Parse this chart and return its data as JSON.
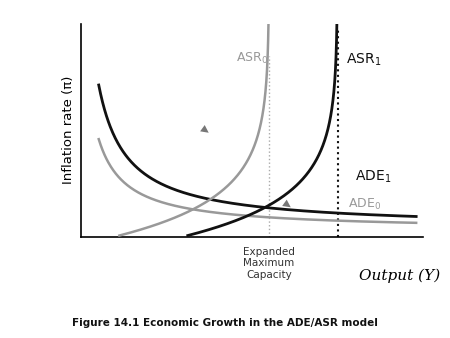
{
  "title_caption": "Figure 14.1 Economic Growth in the ADE/ASR model",
  "ylabel": "Inflation rate (π)",
  "xlabel": "Output (Y)",
  "xlim": [
    0,
    10
  ],
  "ylim": [
    0,
    10
  ],
  "asr0_label": "ASR$_0$",
  "asr1_label": "ASR$_1$",
  "ade0_label": "ADE$_0$",
  "ade1_label": "ADE$_1$",
  "capacity_label": "Expanded\nMaximum\nCapacity",
  "asr0_color": "#999999",
  "asr1_color": "#111111",
  "ade0_color": "#999999",
  "ade1_color": "#111111",
  "dotted_new_color": "#111111",
  "dotted_old_color": "#aaaaaa",
  "arrow_color": "#777777",
  "x_cap_old": 5.5,
  "x_cap_new": 7.5,
  "background": "#ffffff"
}
